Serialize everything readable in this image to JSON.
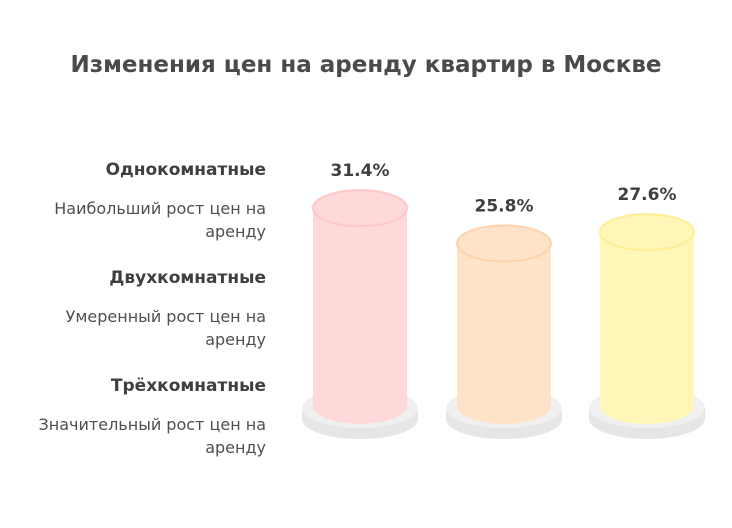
{
  "chart_data": {
    "type": "bar",
    "title": "Изменения цен на аренду квартир в Москве",
    "categories": [
      "Однокомнатные",
      "Двухкомнатные",
      "Трёхкомнатные"
    ],
    "descriptions": [
      "Наибольший рост цен на аренду",
      "Умеренный рост цен на аренду",
      "Значительный рост цен на аренду"
    ],
    "values": [
      31.4,
      25.8,
      27.6
    ],
    "value_labels": [
      "31.4%",
      "25.8%",
      "27.6%"
    ],
    "unit": "%",
    "colors": [
      "#ffd9d9",
      "#ffe3c9",
      "#fff6b8"
    ],
    "edge_colors": [
      "#ffc7c7",
      "#ffd3ad",
      "#ffee94"
    ],
    "ylim": [
      0,
      40
    ],
    "legend_position": "left",
    "grid": false
  }
}
